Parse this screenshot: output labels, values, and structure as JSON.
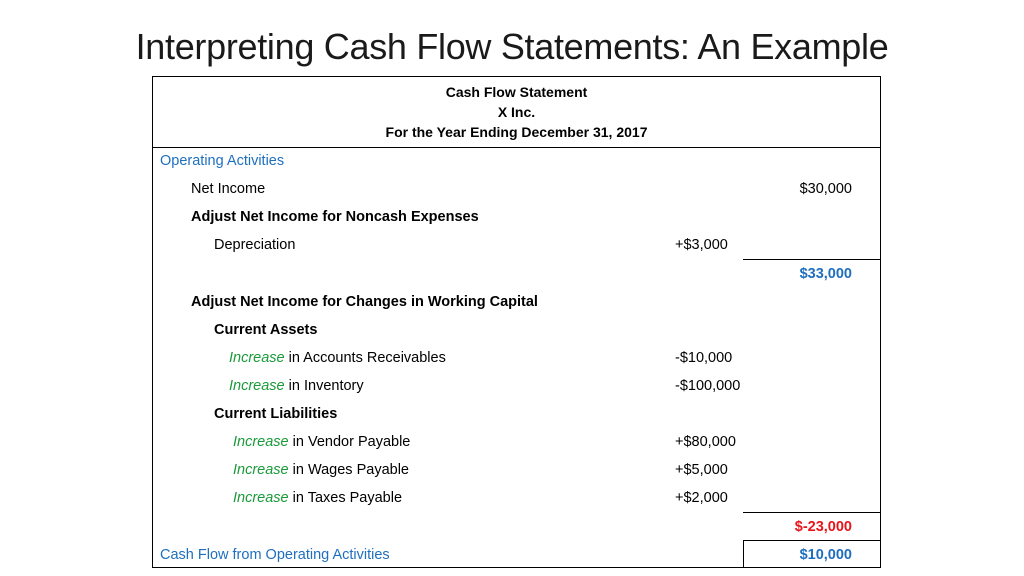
{
  "slide": {
    "title": "Interpreting Cash Flow Statements: An Example"
  },
  "statement": {
    "header": [
      "Cash Flow Statement",
      "X Inc.",
      "For the Year Ending December 31, 2017"
    ],
    "operating_label": "Operating Activities",
    "net_income": {
      "label": "Net Income",
      "amount": "$30,000"
    },
    "noncash_heading": "Adjust Net Income for Noncash Expenses",
    "depreciation": {
      "label": "Depreciation",
      "amount": "+$3,000"
    },
    "subtotal_1": "$33,000",
    "working_capital_heading": "Adjust Net Income for Changes in Working Capital",
    "current_assets_heading": "Current Assets",
    "ar": {
      "emph": "Increase",
      "label": "in Accounts Receivables",
      "amount": "-$10,000"
    },
    "inventory": {
      "emph": "Increase",
      "label": "in Inventory",
      "amount": "-$100,000"
    },
    "current_liabilities_heading": "Current Liabilities",
    "vendor": {
      "emph": "Increase",
      "label": "in Vendor Payable",
      "amount": "+$80,000"
    },
    "wages": {
      "emph": "Increase",
      "label": "in Wages Payable",
      "amount": "+$5,000"
    },
    "taxes": {
      "emph": "Increase",
      "label": "in Taxes Payable",
      "amount": "+$2,000"
    },
    "subtotal_2": "$-23,000",
    "cash_flow_total": {
      "label": "Cash Flow from Operating Activities",
      "amount": "$10,000"
    }
  },
  "colors": {
    "blue": "#1f6fbf",
    "green": "#1a9a3a",
    "red": "#e8141a"
  }
}
